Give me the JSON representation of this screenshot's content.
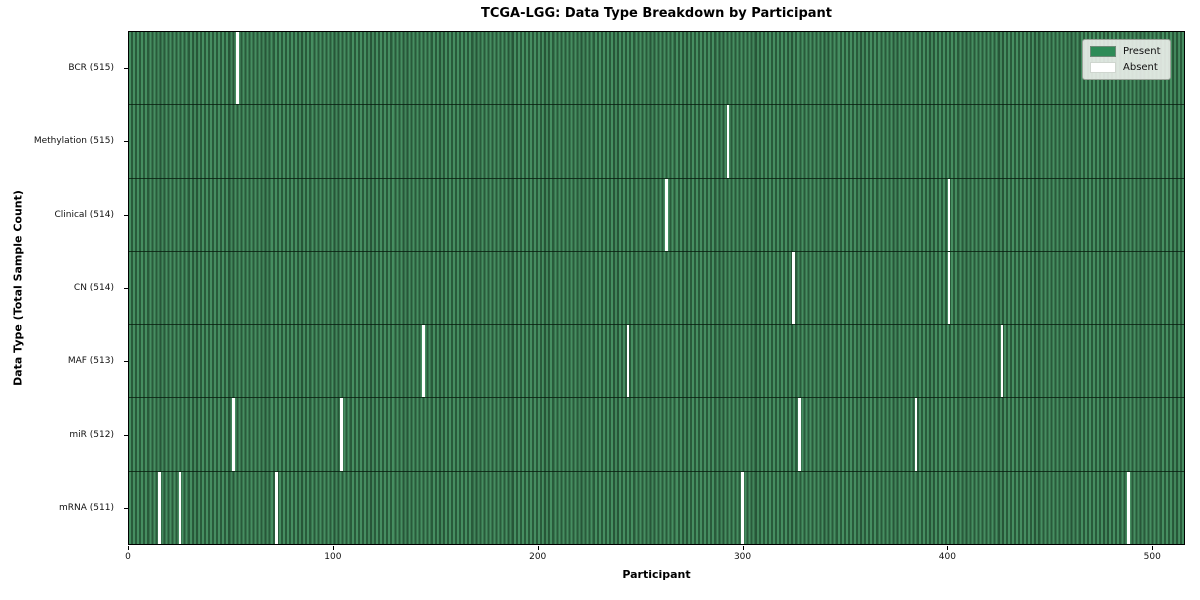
{
  "title": "TCGA-LGG: Data Type Breakdown by Participant",
  "x_axis": {
    "label": "Participant",
    "ticks": [
      0,
      100,
      200,
      300,
      400,
      500
    ]
  },
  "y_axis": {
    "label": "Data Type (Total Sample Count)"
  },
  "legend": {
    "entries": [
      {
        "label": "Present",
        "color": "#2e8b57"
      },
      {
        "label": "Absent",
        "color": "#ffffff"
      }
    ]
  },
  "colors": {
    "present_stripe_light": "#468e61",
    "present_stripe_dark": "#295b3b",
    "absent": "#ffffff",
    "row_separator": "#05190c",
    "legend_bg": "#ecf0ec"
  },
  "chart_data": {
    "type": "heatmap",
    "title": "TCGA-LGG: Data Type Breakdown by Participant",
    "xlabel": "Participant",
    "ylabel": "Data Type (Total Sample Count)",
    "x_range": [
      0,
      516
    ],
    "total_participants": 516,
    "legend": [
      "Present",
      "Absent"
    ],
    "rows": [
      {
        "label": "BCR (515)",
        "data_type": "BCR",
        "present_count": 515,
        "absent_participants": [
          53
        ]
      },
      {
        "label": "Methylation (515)",
        "data_type": "Methylation",
        "present_count": 515,
        "absent_participants": [
          293
        ]
      },
      {
        "label": "Clinical (514)",
        "data_type": "Clinical",
        "present_count": 514,
        "absent_participants": [
          263,
          401
        ]
      },
      {
        "label": "CN (514)",
        "data_type": "CN",
        "present_count": 514,
        "absent_participants": [
          325,
          401
        ]
      },
      {
        "label": "MAF (513)",
        "data_type": "MAF",
        "present_count": 513,
        "absent_participants": [
          144,
          244,
          427
        ]
      },
      {
        "label": "miR (512)",
        "data_type": "miR",
        "present_count": 512,
        "absent_participants": [
          51,
          104,
          328,
          385
        ]
      },
      {
        "label": "mRNA (511)",
        "data_type": "mRNA",
        "present_count": 511,
        "absent_participants": [
          15,
          25,
          72,
          300,
          489
        ]
      }
    ]
  }
}
